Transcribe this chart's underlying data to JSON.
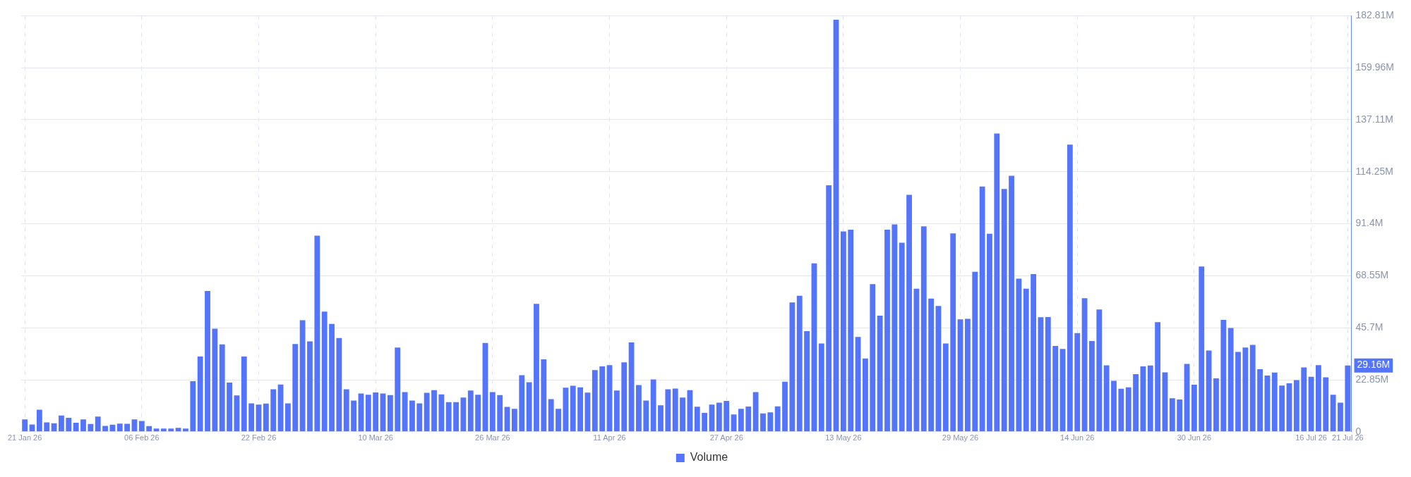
{
  "chart_data": {
    "type": "bar",
    "categories": [
      "21 Jan 26",
      null,
      null,
      null,
      null,
      null,
      null,
      null,
      null,
      null,
      null,
      null,
      null,
      null,
      null,
      null,
      "06 Feb 26",
      null,
      null,
      null,
      null,
      null,
      null,
      null,
      null,
      null,
      null,
      null,
      null,
      null,
      null,
      null,
      "22 Feb 26",
      null,
      null,
      null,
      null,
      null,
      null,
      null,
      null,
      null,
      null,
      null,
      null,
      null,
      null,
      null,
      "10 Mar 26",
      null,
      null,
      null,
      null,
      null,
      null,
      null,
      null,
      null,
      null,
      null,
      null,
      null,
      null,
      null,
      "26 Mar 26",
      null,
      null,
      null,
      null,
      null,
      null,
      null,
      null,
      null,
      null,
      null,
      null,
      null,
      null,
      null,
      "11 Apr 26",
      null,
      null,
      null,
      null,
      null,
      null,
      null,
      null,
      null,
      null,
      null,
      null,
      null,
      null,
      null,
      "27 Apr 26",
      null,
      null,
      null,
      null,
      null,
      null,
      null,
      null,
      null,
      null,
      null,
      null,
      null,
      null,
      null,
      "13 May 26",
      null,
      null,
      null,
      null,
      null,
      null,
      null,
      null,
      null,
      null,
      null,
      null,
      null,
      null,
      null,
      "29 May 26",
      null,
      null,
      null,
      null,
      null,
      null,
      null,
      null,
      null,
      null,
      null,
      null,
      null,
      null,
      null,
      "14 Jun 26",
      null,
      null,
      null,
      null,
      null,
      null,
      null,
      null,
      null,
      null,
      null,
      null,
      null,
      null,
      null,
      "30 Jun 26",
      null,
      null,
      null,
      null,
      null,
      null,
      null,
      null,
      null,
      null,
      null,
      null,
      null,
      null,
      null,
      "16 Jul 26",
      null,
      null,
      null,
      null,
      "21 Jul 26"
    ],
    "series": [
      {
        "name": "Volume",
        "color": "#5475fb",
        "values": [
          5.4,
          3.2,
          9.7,
          4.1,
          3.7,
          7.1,
          6.1,
          4.0,
          5.4,
          3.4,
          6.7,
          2.6,
          3.1,
          3.6,
          3.5,
          5.4,
          4.7,
          2.5,
          1.4,
          1.4,
          1.4,
          1.7,
          1.4,
          22.2,
          33.1,
          61.9,
          45.3,
          38.4,
          21.6,
          16.0,
          33.1,
          12.5,
          11.9,
          12.4,
          18.7,
          20.8,
          12.5,
          38.6,
          49.0,
          39.7,
          86.2,
          52.8,
          47.4,
          41.2,
          18.7,
          13.7,
          16.8,
          16.3,
          17.3,
          16.8,
          16.1,
          37.0,
          17.4,
          13.7,
          12.5,
          17.1,
          18.3,
          16.4,
          13.0,
          13.0,
          15.0,
          18.1,
          16.3,
          39.0,
          17.4,
          16.1,
          10.9,
          10.1,
          24.9,
          21.8,
          56.2,
          31.8,
          14.3,
          10.1,
          19.4,
          20.2,
          19.5,
          17.2,
          27.1,
          28.7,
          29.3,
          18.1,
          30.5,
          39.3,
          20.5,
          13.7,
          23.0,
          11.6,
          18.7,
          19.0,
          15.0,
          18.3,
          11.0,
          8.3,
          11.9,
          12.8,
          13.6,
          7.6,
          10.1,
          11.1,
          17.4,
          8.1,
          8.5,
          11.2,
          22.0,
          56.8,
          59.8,
          44.2,
          74.0,
          38.8,
          108.3,
          181.1,
          88.0,
          88.8,
          41.7,
          32.2,
          64.9,
          51.0,
          88.8,
          91.1,
          83.1,
          104.1,
          62.9,
          90.3,
          58.5,
          55.3,
          38.8,
          87.2,
          49.4,
          49.6,
          70.3,
          107.8,
          87.0,
          131.1,
          106.7,
          112.5,
          67.3,
          62.9,
          69.3,
          50.3,
          50.4,
          37.7,
          36.4,
          126.2,
          43.4,
          58.7,
          39.9,
          53.7,
          29.2,
          22.4,
          18.9,
          19.5,
          25.3,
          28.7,
          29.1,
          48.2,
          26.1,
          14.7,
          14.2,
          29.8,
          20.7,
          72.6,
          35.7,
          23.5,
          49.2,
          45.6,
          35.1,
          37.0,
          38.2,
          27.5,
          24.7,
          26.0,
          20.3,
          21.3,
          22.7,
          28.3,
          24.2,
          29.3,
          23.9,
          16.3,
          12.8,
          29.16
        ]
      }
    ],
    "ylim": [
      0,
      182.81
    ],
    "yticks": [
      0,
      {
        "value": 22.85,
        "label": "22.85M"
      },
      {
        "value": 45.7,
        "label": "45.7M"
      },
      {
        "value": 68.55,
        "label": "68.55M"
      },
      {
        "value": 91.4,
        "label": "91.4M"
      },
      {
        "value": 114.25,
        "label": "114.25M"
      },
      {
        "value": 137.11,
        "label": "137.11M"
      },
      {
        "value": 159.96,
        "label": "159.96M"
      },
      {
        "value": 182.81,
        "label": "182.81M"
      }
    ],
    "annotations": [
      "29.16M"
    ],
    "grid": true,
    "legend": "bottom"
  }
}
